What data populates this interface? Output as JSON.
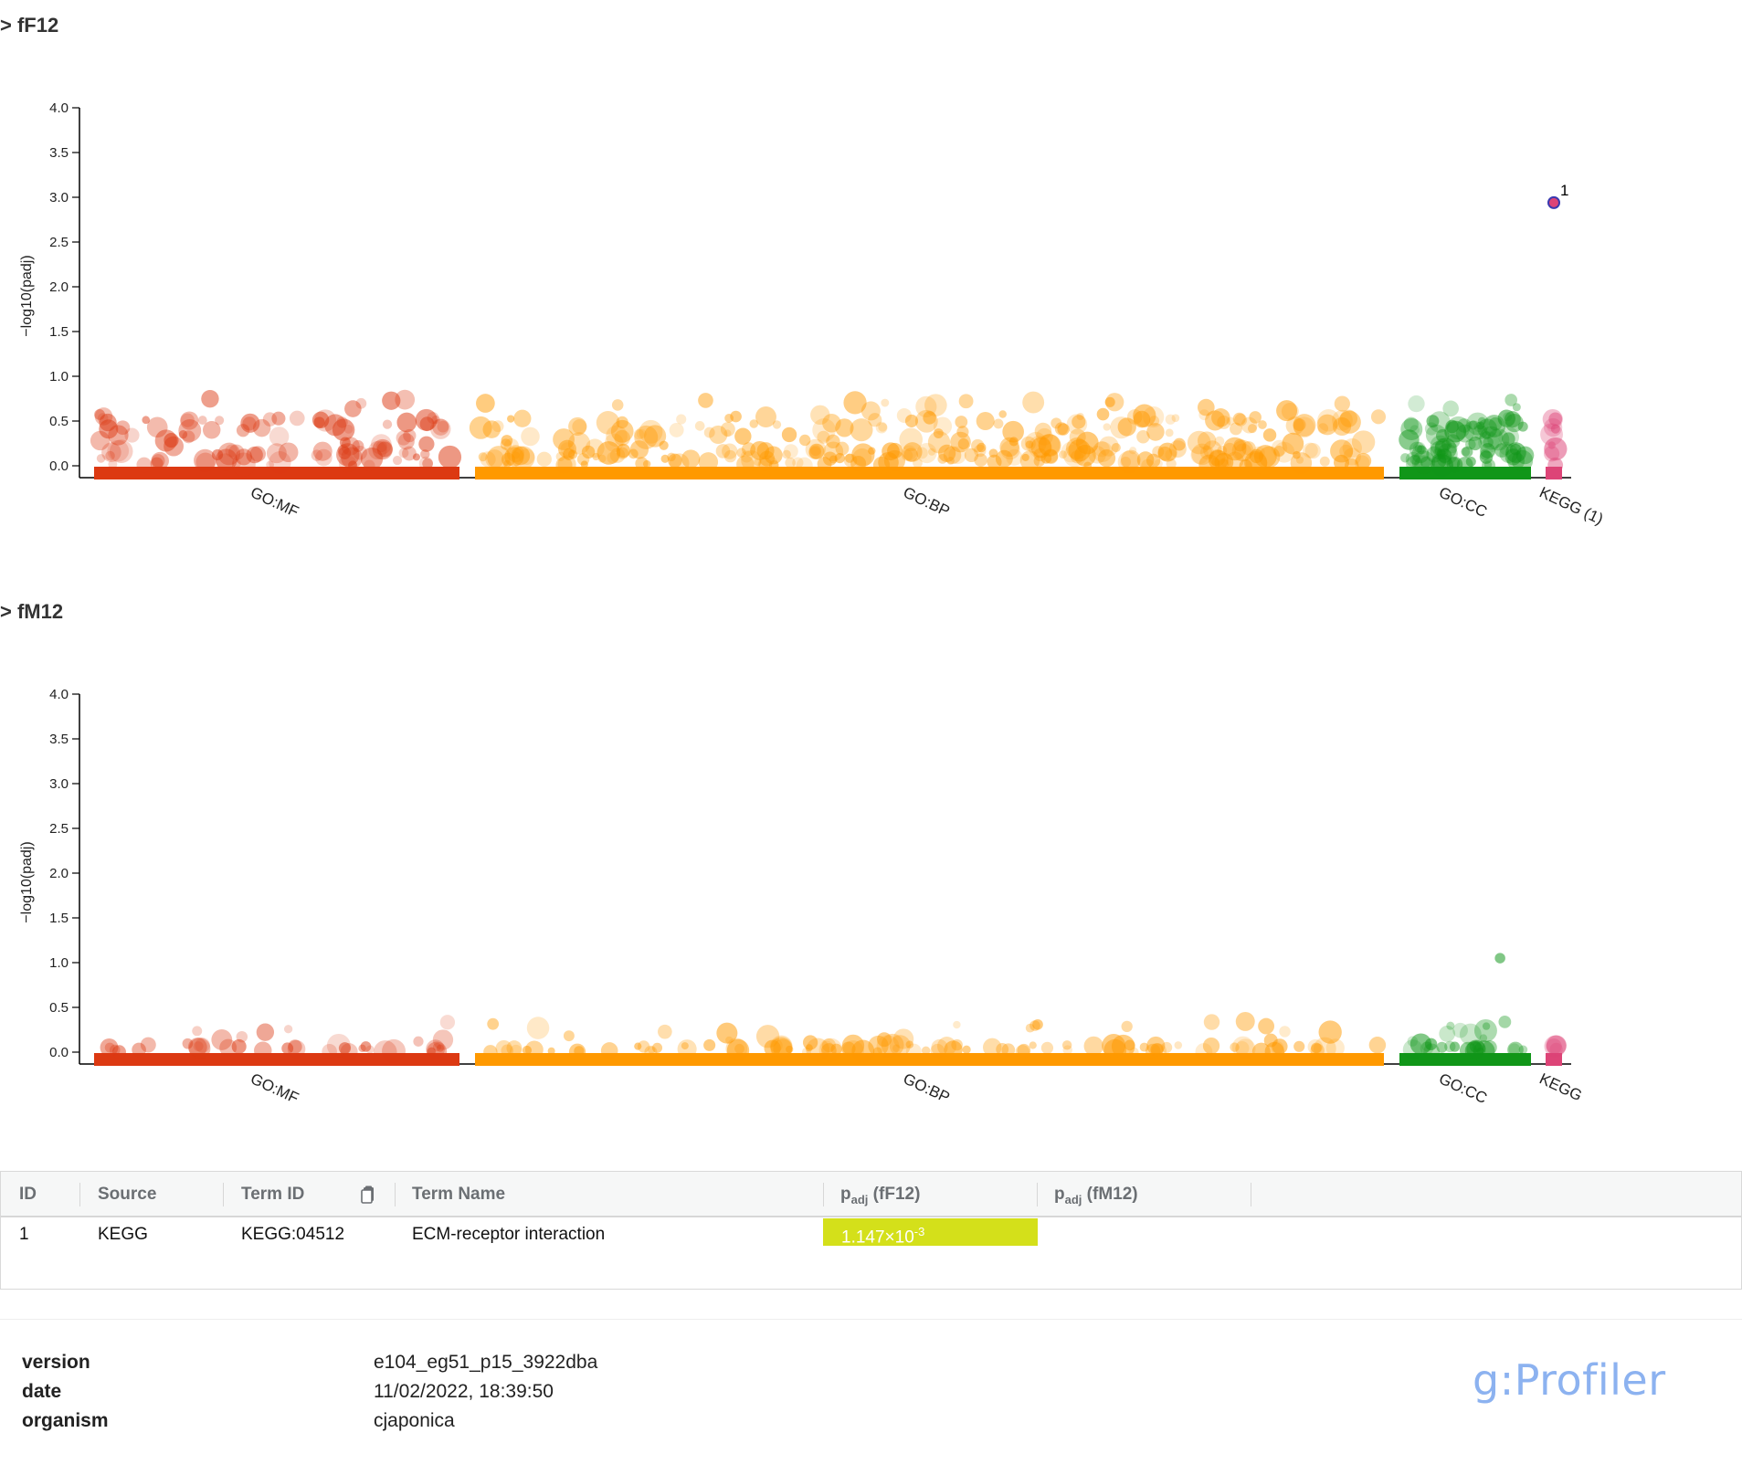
{
  "chart_data": [
    {
      "type": "scatter",
      "title": "> fF12",
      "ylabel": "−log10(padj)",
      "ylim": [
        0,
        4
      ],
      "yticks": [
        "0.0",
        "0.5",
        "1.0",
        "1.5",
        "2.0",
        "2.5",
        "3.0",
        "3.5",
        "4.0"
      ],
      "sources": [
        {
          "name": "GO:MF",
          "label": "GO:MF",
          "color": "#dc3912"
        },
        {
          "name": "GO:BP",
          "label": "GO:BP",
          "color": "#ff9900"
        },
        {
          "name": "GO:CC",
          "label": "GO:CC",
          "color": "#109618"
        },
        {
          "name": "KEGG",
          "label": "KEGG (1)",
          "color": "#dd4477"
        }
      ],
      "highlighted": [
        {
          "id": "1",
          "source": "KEGG",
          "y": 2.94
        }
      ]
    },
    {
      "type": "scatter",
      "title": "> fM12",
      "ylabel": "−log10(padj)",
      "ylim": [
        0,
        4
      ],
      "yticks": [
        "0.0",
        "0.5",
        "1.0",
        "1.5",
        "2.0",
        "2.5",
        "3.0",
        "3.5",
        "4.0"
      ],
      "sources": [
        {
          "name": "GO:MF",
          "label": "GO:MF",
          "color": "#dc3912"
        },
        {
          "name": "GO:BP",
          "label": "GO:BP",
          "color": "#ff9900"
        },
        {
          "name": "GO:CC",
          "label": "GO:CC",
          "color": "#109618"
        },
        {
          "name": "KEGG",
          "label": "KEGG",
          "color": "#dd4477"
        }
      ],
      "highlighted": []
    }
  ],
  "table": {
    "headers": {
      "id": "ID",
      "source": "Source",
      "term_id": "Term ID",
      "term_name": "Term Name",
      "p1_base": "p",
      "p1_sub": "adj",
      "p1_suffix": " (fF12)",
      "p2_base": "p",
      "p2_sub": "adj",
      "p2_suffix": " (fM12)"
    },
    "rows": [
      {
        "id": "1",
        "source": "KEGG",
        "term_id": "KEGG:04512",
        "term_name": "ECM-receptor interaction",
        "p_fF12_mantissa": "1.147×10",
        "p_fF12_exp": "-3",
        "p_fF12_color": "#d4e01a",
        "p_fM12": ""
      }
    ],
    "copy_icon": "clipboard-icon"
  },
  "footer": {
    "version_label": "version",
    "version_value": "e104_eg51_p15_3922dba",
    "date_label": "date",
    "date_value": "11/02/2022, 18:39:50",
    "organism_label": "organism",
    "organism_value": "cjaponica",
    "brand": "g:Profiler"
  }
}
